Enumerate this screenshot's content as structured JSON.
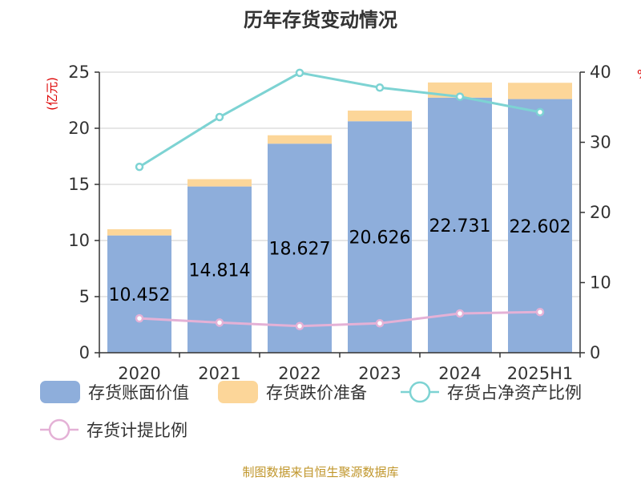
{
  "chart_data": {
    "type": "bar",
    "title": "历年存货变动情况",
    "left_unit": "(亿元)",
    "right_unit": "%",
    "categories": [
      "2020",
      "2021",
      "2022",
      "2023",
      "2024",
      "2025H1"
    ],
    "ylim_left": [
      0,
      25
    ],
    "yticks_left": [
      "0",
      "5",
      "10",
      "15",
      "20",
      "25"
    ],
    "ylim_right": [
      0,
      40
    ],
    "yticks_right": [
      "0",
      "10",
      "20",
      "30",
      "40"
    ],
    "grid": true,
    "legend_position": "bottom",
    "series": [
      {
        "name": "存货账面价值",
        "kind": "bar",
        "axis": "left",
        "color": "#8eaedb",
        "values": [
          10.452,
          14.814,
          18.627,
          20.626,
          22.731,
          22.602
        ],
        "labels": [
          "10.452",
          "14.814",
          "18.627",
          "20.626",
          "22.731",
          "22.602"
        ]
      },
      {
        "name": "存货跌价准备",
        "kind": "bar-stack",
        "axis": "left",
        "color": "#fcd699",
        "values": [
          0.55,
          0.65,
          0.75,
          0.95,
          1.35,
          1.45
        ]
      },
      {
        "name": "存货占净资产比例",
        "kind": "line",
        "axis": "right",
        "color": "#7dd3d3",
        "values": [
          26.5,
          33.6,
          39.9,
          37.8,
          36.5,
          34.3
        ]
      },
      {
        "name": "存货计提比例",
        "kind": "line",
        "axis": "right",
        "color": "#e4b1d6",
        "values": [
          4.9,
          4.3,
          3.8,
          4.2,
          5.6,
          5.8
        ]
      }
    ]
  },
  "footer": "制图数据来自恒生聚源数据库"
}
